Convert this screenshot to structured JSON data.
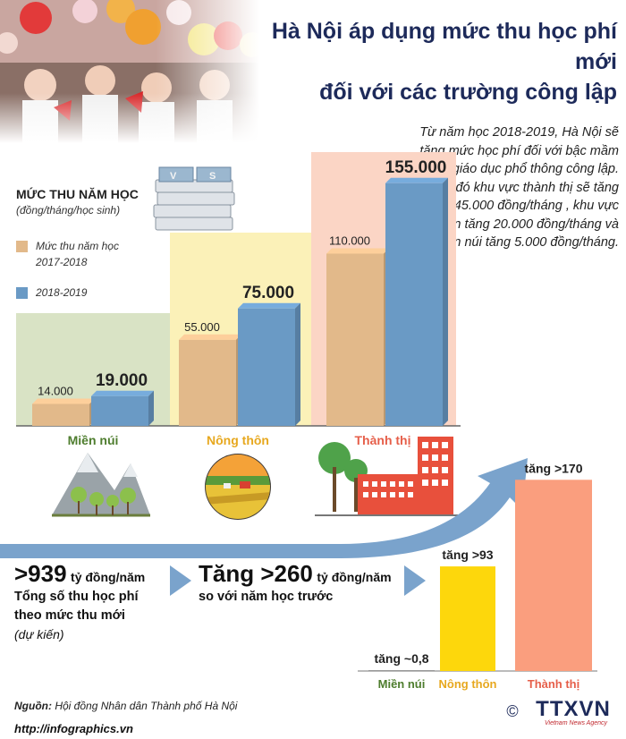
{
  "header": {
    "title_line1": "Hà Nội áp dụng mức thu học phí mới",
    "title_line2": "đối với các trường công lập"
  },
  "intro": "Từ năm học 2018-2019, Hà Nội sẽ tăng mức học phí đối với bậc mầm non, giáo dục phổ thông công lập. Theo đó khu vực thành thị sẽ tăng thêm 45.000 đồng/tháng , khu vực nông thôn tăng 20.000 đồng/tháng và miền núi tăng 5.000 đồng/tháng.",
  "legend": {
    "title": "MỨC THU NĂM HỌC",
    "subtitle": "(đồng/tháng/học sinh)",
    "item_2017": "Mức thu năm học 2017-2018",
    "item_2018": "2018-2019"
  },
  "colors": {
    "tan": "#e2b98a",
    "blue": "#6a9ac5",
    "green_bg": "#d9e3c5",
    "yellow_bg": "#fbf1b8",
    "pink_bg": "#fbd5c5",
    "yellow_bar": "#fdd70c",
    "salmon_bar": "#fa9e7e",
    "arrow": "#7aa3cc",
    "green_text": "#4e7d2e",
    "yellow_text": "#e7a81f",
    "red_text": "#e65f4a"
  },
  "chart_data": [
    {
      "type": "bar",
      "categories": [
        "Miền núi",
        "Nông thôn",
        "Thành thị"
      ],
      "series": [
        {
          "name": "Mức thu năm học 2017-2018",
          "values": [
            14000,
            55000,
            110000
          ]
        },
        {
          "name": "2018-2019",
          "values": [
            19000,
            75000,
            155000
          ]
        }
      ],
      "data_labels": [
        [
          "14.000",
          "55.000",
          "110.000"
        ],
        [
          "19.000",
          "75.000",
          "155.000"
        ]
      ],
      "ylim": [
        0,
        160000
      ],
      "legend": "top-left",
      "grid": false
    },
    {
      "type": "bar",
      "categories": [
        "Miền núi",
        "Nông thôn",
        "Thành thị"
      ],
      "values": [
        0.8,
        93,
        170
      ],
      "data_labels": [
        "tăng ~0,8",
        "tăng >93",
        "tăng >170"
      ],
      "ylim": [
        0,
        175
      ],
      "grid": false
    }
  ],
  "stats": {
    "total_value": ">939",
    "total_unit": "tỷ đồng/năm",
    "total_line1": "Tổng số thu học phí",
    "total_line2": "theo mức thu mới",
    "total_note": "(dự kiến)",
    "increase_value": "Tăng >260",
    "increase_unit": "tỷ đồng/năm",
    "increase_line": "so với năm học trước"
  },
  "footer": {
    "source_label": "Nguồn:",
    "source_text": "Hội đồng Nhân dân Thành phố Hà Nội",
    "url": "http://infographics.vn",
    "copyright": "©",
    "brand": "TTXVN",
    "brand_sub": "Vietnam News Agency"
  }
}
